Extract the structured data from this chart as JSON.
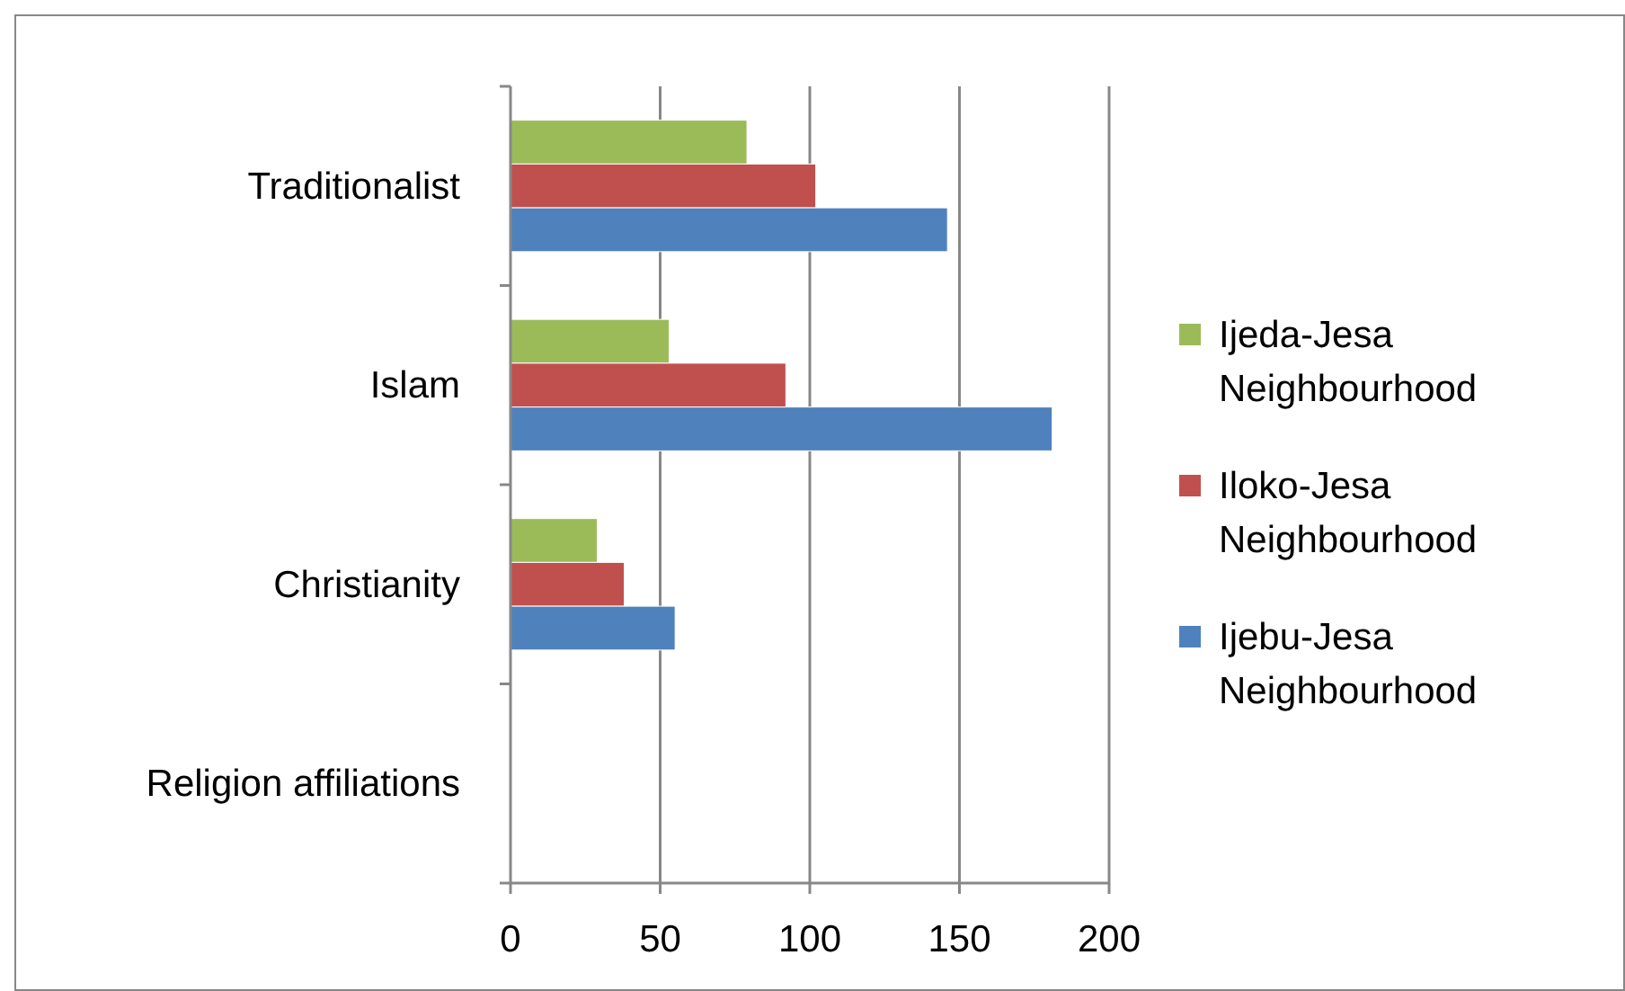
{
  "chart_data": {
    "type": "bar",
    "orientation": "horizontal",
    "categories": [
      "Traditionalist",
      "Islam",
      "Christianity",
      "Religion affiliations"
    ],
    "series": [
      {
        "name": "Ijeda-Jesa Neighbourhood",
        "color": "#9bbb59",
        "values": [
          79,
          53,
          29,
          null
        ]
      },
      {
        "name": "Iloko-Jesa Neighbourhood",
        "color": "#c0504d",
        "values": [
          102,
          92,
          38,
          null
        ]
      },
      {
        "name": "Ijebu-Jesa Neighbourhood",
        "color": "#4f81bd",
        "values": [
          146,
          181,
          55,
          null
        ]
      }
    ],
    "xlim": [
      0,
      200
    ],
    "xticks": [
      0,
      50,
      100,
      150,
      200
    ],
    "grid": "x",
    "legend": "right"
  }
}
